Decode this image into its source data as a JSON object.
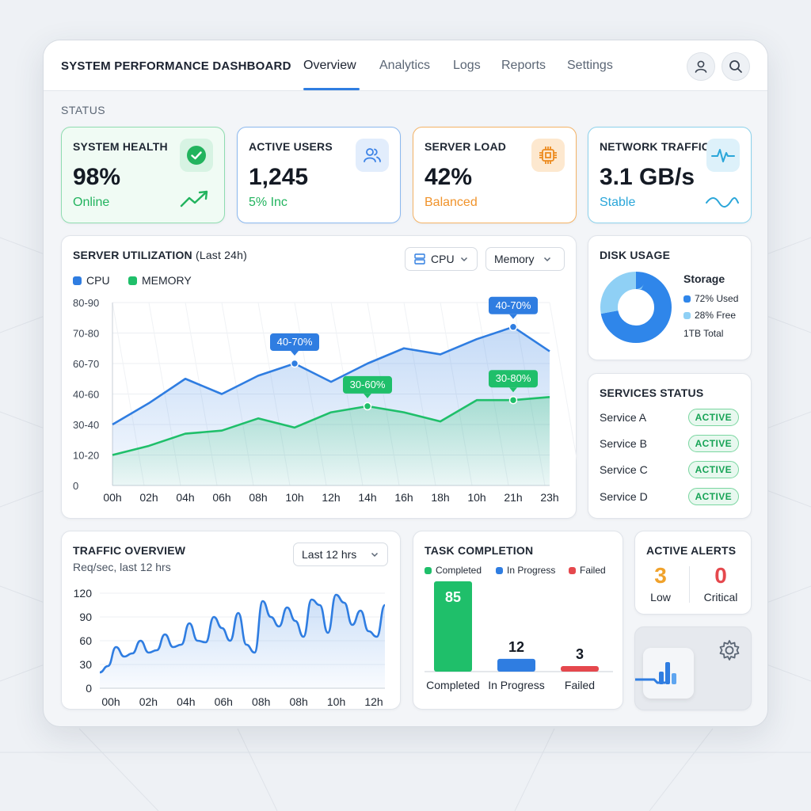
{
  "app": {
    "title": "SYSTEM PERFORMANCE DASHBOARD",
    "tabs": [
      {
        "label": "Overview",
        "active": true
      },
      {
        "label": "Analytics",
        "active": false
      },
      {
        "label": "Logs",
        "active": false
      },
      {
        "label": "Reports",
        "active": false
      },
      {
        "label": "Settings",
        "active": false
      }
    ],
    "icons": [
      "user-icon",
      "search-icon"
    ]
  },
  "status": {
    "label": "STATUS",
    "cards": [
      {
        "title": "SYSTEM HEALTH",
        "value": "98%",
        "sub": "Online",
        "icon": "check-circle-icon",
        "accent": "#22b35e"
      },
      {
        "title": "ACTIVE USERS",
        "value": "1,245",
        "sub": "5% Inc",
        "icon": "users-icon",
        "accent": "#3b82e6"
      },
      {
        "title": "SERVER LOAD",
        "value": "42%",
        "sub": "Balanced",
        "icon": "cpu-chip-icon",
        "accent": "#f0932b"
      },
      {
        "title": "NETWORK TRAFFIC",
        "value": "3.1 GB/s",
        "sub": "Stable",
        "icon": "pulse-icon",
        "accent": "#2aa6d9"
      }
    ]
  },
  "server_utilization": {
    "title": "SERVER UTILIZATION",
    "title_suffix": "(Last 24h)",
    "dropdown_cpu": "CPU",
    "dropdown_memory": "Memory",
    "colors": {
      "cpu": "#2f7de1",
      "memory": "#1fbf6a"
    }
  },
  "disk_usage": {
    "title": "DISK USAGE",
    "storage_label": "Storage",
    "used_label": "72% Used",
    "free_label": "28% Free",
    "total_label": "1TB Total",
    "colors": {
      "used": "#2f86ea",
      "free": "#8fd0f5"
    }
  },
  "services": {
    "title": "SERVICES STATUS",
    "items": [
      {
        "name": "Service A",
        "status": "ACTIVE"
      },
      {
        "name": "Service B",
        "status": "ACTIVE"
      },
      {
        "name": "Service C",
        "status": "ACTIVE"
      },
      {
        "name": "Service D",
        "status": "ACTIVE"
      }
    ]
  },
  "traffic_overview": {
    "title": "TRAFFIC OVERVIEW",
    "subtitle": "Req/sec, last 12 hrs",
    "dropdown": "Last 12 hrs"
  },
  "task_completion": {
    "title": "TASK COMPLETION",
    "legend": [
      "Completed",
      "In Progress",
      "Failed"
    ]
  },
  "alerts": {
    "title": "ACTIVE ALERTS",
    "low_value": "3",
    "low_label": "Low",
    "critical_value": "0",
    "critical_label": "Critical",
    "colors": {
      "low": "#f0a22b",
      "critical": "#e5484d"
    }
  },
  "chart_data": [
    {
      "id": "server-utilization",
      "type": "area",
      "categories": [
        "00h",
        "02h",
        "04h",
        "06h",
        "08h",
        "10h",
        "12h",
        "14h",
        "16h",
        "18h",
        "10h",
        "21h",
        "23h"
      ],
      "y_tick_labels": [
        "0",
        "10-20",
        "30-40",
        "40-60",
        "60-70",
        "70-80",
        "80-90"
      ],
      "series": [
        {
          "name": "CPU",
          "values": [
            2,
            2.7,
            3.5,
            3.0,
            3.6,
            4.0,
            3.4,
            4.0,
            4.5,
            4.3,
            4.8,
            5.2,
            4.4
          ]
        },
        {
          "name": "MEMORY",
          "values": [
            1,
            1.3,
            1.7,
            1.8,
            2.2,
            1.9,
            2.4,
            2.6,
            2.4,
            2.1,
            2.8,
            2.8,
            2.9
          ]
        }
      ],
      "annotations": [
        {
          "series": "CPU",
          "index": 5,
          "text": "40-70%"
        },
        {
          "series": "CPU",
          "index": 11,
          "text": "40-70%"
        },
        {
          "series": "MEMORY",
          "index": 7,
          "text": "30-60%"
        },
        {
          "series": "MEMORY",
          "index": 11,
          "text": "30-80%"
        }
      ],
      "ylim": [
        0,
        6
      ],
      "grid": true,
      "legend": "top-left"
    },
    {
      "id": "disk-usage",
      "type": "pie",
      "labels": [
        "Used",
        "Free"
      ],
      "values": [
        72,
        28
      ]
    },
    {
      "id": "traffic-overview",
      "type": "area",
      "x_tick_labels": [
        "00h",
        "02h",
        "04h",
        "06h",
        "08h",
        "08h",
        "10h",
        "12h"
      ],
      "y_ticks": [
        0,
        30,
        60,
        90,
        120
      ],
      "values": [
        20,
        28,
        52,
        40,
        44,
        60,
        45,
        48,
        68,
        52,
        55,
        82,
        60,
        58,
        90,
        76,
        60,
        95,
        55,
        45,
        110,
        90,
        78,
        102,
        85,
        65,
        112,
        105,
        70,
        118,
        108,
        80,
        98,
        72,
        65,
        105
      ],
      "ylim": [
        0,
        120
      ],
      "grid": true
    },
    {
      "id": "task-completion",
      "type": "bar",
      "categories": [
        "Completed",
        "In Progress",
        "Failed"
      ],
      "values": [
        85,
        12,
        3
      ],
      "colors": [
        "#1fbf6a",
        "#2f7de1",
        "#e5484d"
      ]
    }
  ]
}
